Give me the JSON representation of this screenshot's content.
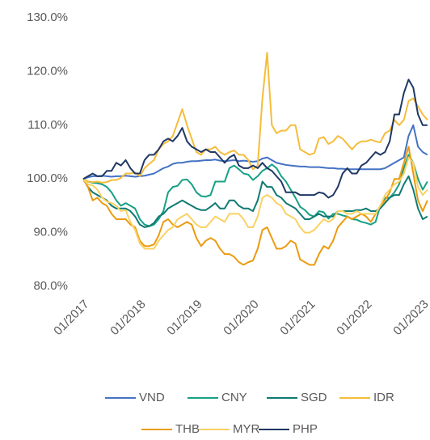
{
  "chart_data": {
    "type": "line",
    "x": [
      "01/2017",
      "02/2017",
      "03/2017",
      "04/2017",
      "05/2017",
      "06/2017",
      "07/2017",
      "08/2017",
      "09/2017",
      "10/2017",
      "11/2017",
      "12/2017",
      "01/2018",
      "02/2018",
      "03/2018",
      "04/2018",
      "05/2018",
      "06/2018",
      "07/2018",
      "08/2018",
      "09/2018",
      "10/2018",
      "11/2018",
      "12/2018",
      "01/2019",
      "02/2019",
      "03/2019",
      "04/2019",
      "05/2019",
      "06/2019",
      "07/2019",
      "08/2019",
      "09/2019",
      "10/2019",
      "11/2019",
      "12/2019",
      "01/2020",
      "02/2020",
      "03/2020",
      "04/2020",
      "05/2020",
      "06/2020",
      "07/2020",
      "08/2020",
      "09/2020",
      "10/2020",
      "11/2020",
      "12/2020",
      "01/2021",
      "02/2021",
      "03/2021",
      "04/2021",
      "05/2021",
      "06/2021",
      "07/2021",
      "08/2021",
      "09/2021",
      "10/2021",
      "11/2021",
      "12/2021",
      "01/2022",
      "02/2022",
      "03/2022",
      "04/2022",
      "05/2022",
      "06/2022",
      "07/2022",
      "08/2022",
      "09/2022",
      "10/2022",
      "11/2022",
      "12/2022",
      "01/2023",
      "02/2023"
    ],
    "xticks": [
      0,
      12,
      24,
      36,
      48,
      60,
      72
    ],
    "ylim": [
      80,
      130
    ],
    "yticks": [
      {
        "value": 80,
        "label": "80.0%"
      },
      {
        "value": 90,
        "label": "90.0%"
      },
      {
        "value": 100,
        "label": "100.0%"
      },
      {
        "value": 110,
        "label": "110.0%"
      },
      {
        "value": 120,
        "label": "120.0%"
      },
      {
        "value": 130,
        "label": "130.0%"
      }
    ],
    "grid": false,
    "series": [
      {
        "name": "VND",
        "color": "#4472c4",
        "values": [
          100,
          100.3,
          100.5,
          100.5,
          100.6,
          100.5,
          100.4,
          100.5,
          100.5,
          100.6,
          100.5,
          100.4,
          100.5,
          100.6,
          100.8,
          101,
          101.5,
          102,
          102.3,
          102.8,
          103,
          103,
          103.2,
          103.3,
          103.3,
          103.4,
          103.5,
          103.5,
          103.6,
          103.4,
          103.3,
          103.4,
          103.5,
          103.3,
          103.4,
          103.3,
          103.2,
          103.3,
          103.8,
          104,
          103.5,
          103,
          102.8,
          102.6,
          102.5,
          102.4,
          102.3,
          102.3,
          102.2,
          102.2,
          102.2,
          102.1,
          102,
          102,
          101.9,
          101.9,
          101.8,
          101.8,
          101.8,
          101.8,
          101.8,
          101.8,
          101.8,
          101.8,
          102,
          102.5,
          103,
          103.5,
          104,
          108,
          110,
          106,
          105,
          104.5
        ]
      },
      {
        "name": "CNY",
        "color": "#16a085",
        "values": [
          100,
          99.5,
          99.3,
          99.2,
          99,
          98.5,
          97.5,
          96,
          95,
          95.5,
          95,
          94.5,
          92.5,
          91.5,
          91.2,
          91.5,
          92.5,
          94,
          97.5,
          98.5,
          98.7,
          99.8,
          99.9,
          99,
          97.5,
          96.8,
          96.7,
          97,
          99.5,
          99.5,
          99.5,
          102,
          102.5,
          101.8,
          101,
          100.8,
          99.8,
          100.5,
          101.5,
          102,
          102.7,
          102,
          100.5,
          99.5,
          98,
          96.5,
          94.8,
          94.2,
          93.3,
          93,
          94,
          93.8,
          92.6,
          93.5,
          93.5,
          93.2,
          93,
          92.5,
          92.4,
          92,
          91.8,
          91.5,
          92,
          95,
          96.5,
          96.5,
          97.5,
          99,
          102,
          104.5,
          103,
          100,
          98,
          99.5
        ]
      },
      {
        "name": "SGD",
        "color": "#0f7a72",
        "values": [
          100,
          98.5,
          97.5,
          97,
          96.5,
          96,
          95,
          94.5,
          94.5,
          94.5,
          94,
          93,
          91.5,
          91,
          91.2,
          91.8,
          93,
          93.5,
          94.5,
          95,
          95.5,
          96,
          95.5,
          95,
          94.5,
          94.2,
          94.2,
          94.8,
          95.5,
          94.5,
          94.5,
          96,
          96,
          95,
          94.5,
          94.5,
          94,
          96,
          99.5,
          98.5,
          98.5,
          97,
          96.5,
          95.5,
          95,
          94.5,
          93.5,
          92.5,
          92.5,
          93,
          93.5,
          93,
          93,
          93,
          94,
          94,
          94,
          94,
          94.2,
          94.2,
          94.5,
          94,
          94,
          94.5,
          95.5,
          96.5,
          97,
          97,
          99,
          100.5,
          98,
          94.5,
          92.5,
          93
        ]
      },
      {
        "name": "IDR",
        "color": "#f5bd3c",
        "values": [
          100,
          99.5,
          99.4,
          99.5,
          99.3,
          99.4,
          99.8,
          99.8,
          100.2,
          101,
          101,
          101.2,
          100.5,
          102,
          102.8,
          103.5,
          105.5,
          106.5,
          107,
          108,
          110.5,
          113,
          110,
          107.5,
          105,
          104.5,
          105.5,
          105.5,
          106,
          105,
          104.5,
          105,
          105.3,
          104.5,
          104.5,
          103.5,
          101.8,
          102.5,
          115,
          123.5,
          110,
          108.5,
          109,
          109,
          110,
          110,
          105.5,
          105,
          104.5,
          104.8,
          107.5,
          107.8,
          106.5,
          107,
          108,
          107.5,
          106.5,
          105.5,
          106.5,
          107,
          107,
          107.3,
          107,
          106.8,
          108.5,
          109,
          111,
          110,
          111,
          114.5,
          115,
          113.5,
          112,
          111
        ]
      },
      {
        "name": "THB",
        "color": "#eb9b10",
        "values": [
          100,
          98.5,
          96,
          96.5,
          95.5,
          95,
          93.5,
          92.5,
          92.5,
          92.5,
          91.5,
          91,
          88.5,
          87.5,
          87.5,
          87.8,
          89.5,
          92,
          92.5,
          91.5,
          91,
          91.5,
          92,
          91.5,
          89,
          87.5,
          88.5,
          89,
          88.5,
          87,
          86,
          86,
          85.5,
          84.5,
          84,
          84.5,
          84.8,
          87,
          90.5,
          91,
          89,
          87,
          87,
          87.5,
          88.5,
          88,
          85,
          84.5,
          84,
          84,
          86,
          87.5,
          87,
          88.5,
          91,
          92,
          93,
          92.5,
          93,
          93.5,
          93,
          92,
          93.5,
          95,
          96,
          97.5,
          100,
          100,
          103,
          106,
          101,
          96,
          94,
          96
        ]
      },
      {
        "name": "MYR",
        "color": "#f9d262",
        "values": [
          100,
          99,
          98.8,
          98,
          96.5,
          95.8,
          95.5,
          95,
          94,
          94.2,
          92,
          90.5,
          88,
          87,
          87,
          87,
          88.5,
          89.5,
          90.5,
          91,
          92.5,
          93,
          93.5,
          92.5,
          91.5,
          91,
          91,
          92,
          93,
          92.5,
          92,
          93.5,
          93.5,
          93.5,
          92.5,
          91,
          91,
          93,
          96.5,
          97,
          96.5,
          95.5,
          95,
          93.5,
          93,
          92.5,
          91,
          90,
          90,
          90.5,
          91.5,
          92.5,
          92,
          92.5,
          94,
          94,
          93.5,
          93.5,
          94,
          93.5,
          93.5,
          93.5,
          93.5,
          95,
          97,
          98,
          99,
          99.5,
          101,
          104,
          103,
          98.5,
          97,
          98
        ]
      },
      {
        "name": "PHP",
        "color": "#1f3864",
        "values": [
          100,
          100.5,
          101,
          100.5,
          100.5,
          101.5,
          101.5,
          103,
          102.5,
          103.5,
          102,
          101,
          101,
          103.5,
          104.5,
          104.5,
          105.5,
          107,
          107.5,
          107,
          108,
          109.5,
          107,
          106,
          105.5,
          105,
          105.5,
          105,
          105,
          104,
          103,
          104,
          104.5,
          102.5,
          102,
          102,
          102.5,
          102,
          103,
          102,
          101.5,
          100.5,
          99.5,
          97.5,
          97.5,
          97.5,
          97,
          97,
          97,
          97,
          97.5,
          97.3,
          96.5,
          97,
          98.5,
          101,
          102,
          101,
          101,
          102.5,
          103,
          104,
          105,
          104.5,
          105,
          107,
          112,
          112,
          116,
          118.5,
          117,
          112,
          110,
          110
        ]
      }
    ]
  }
}
